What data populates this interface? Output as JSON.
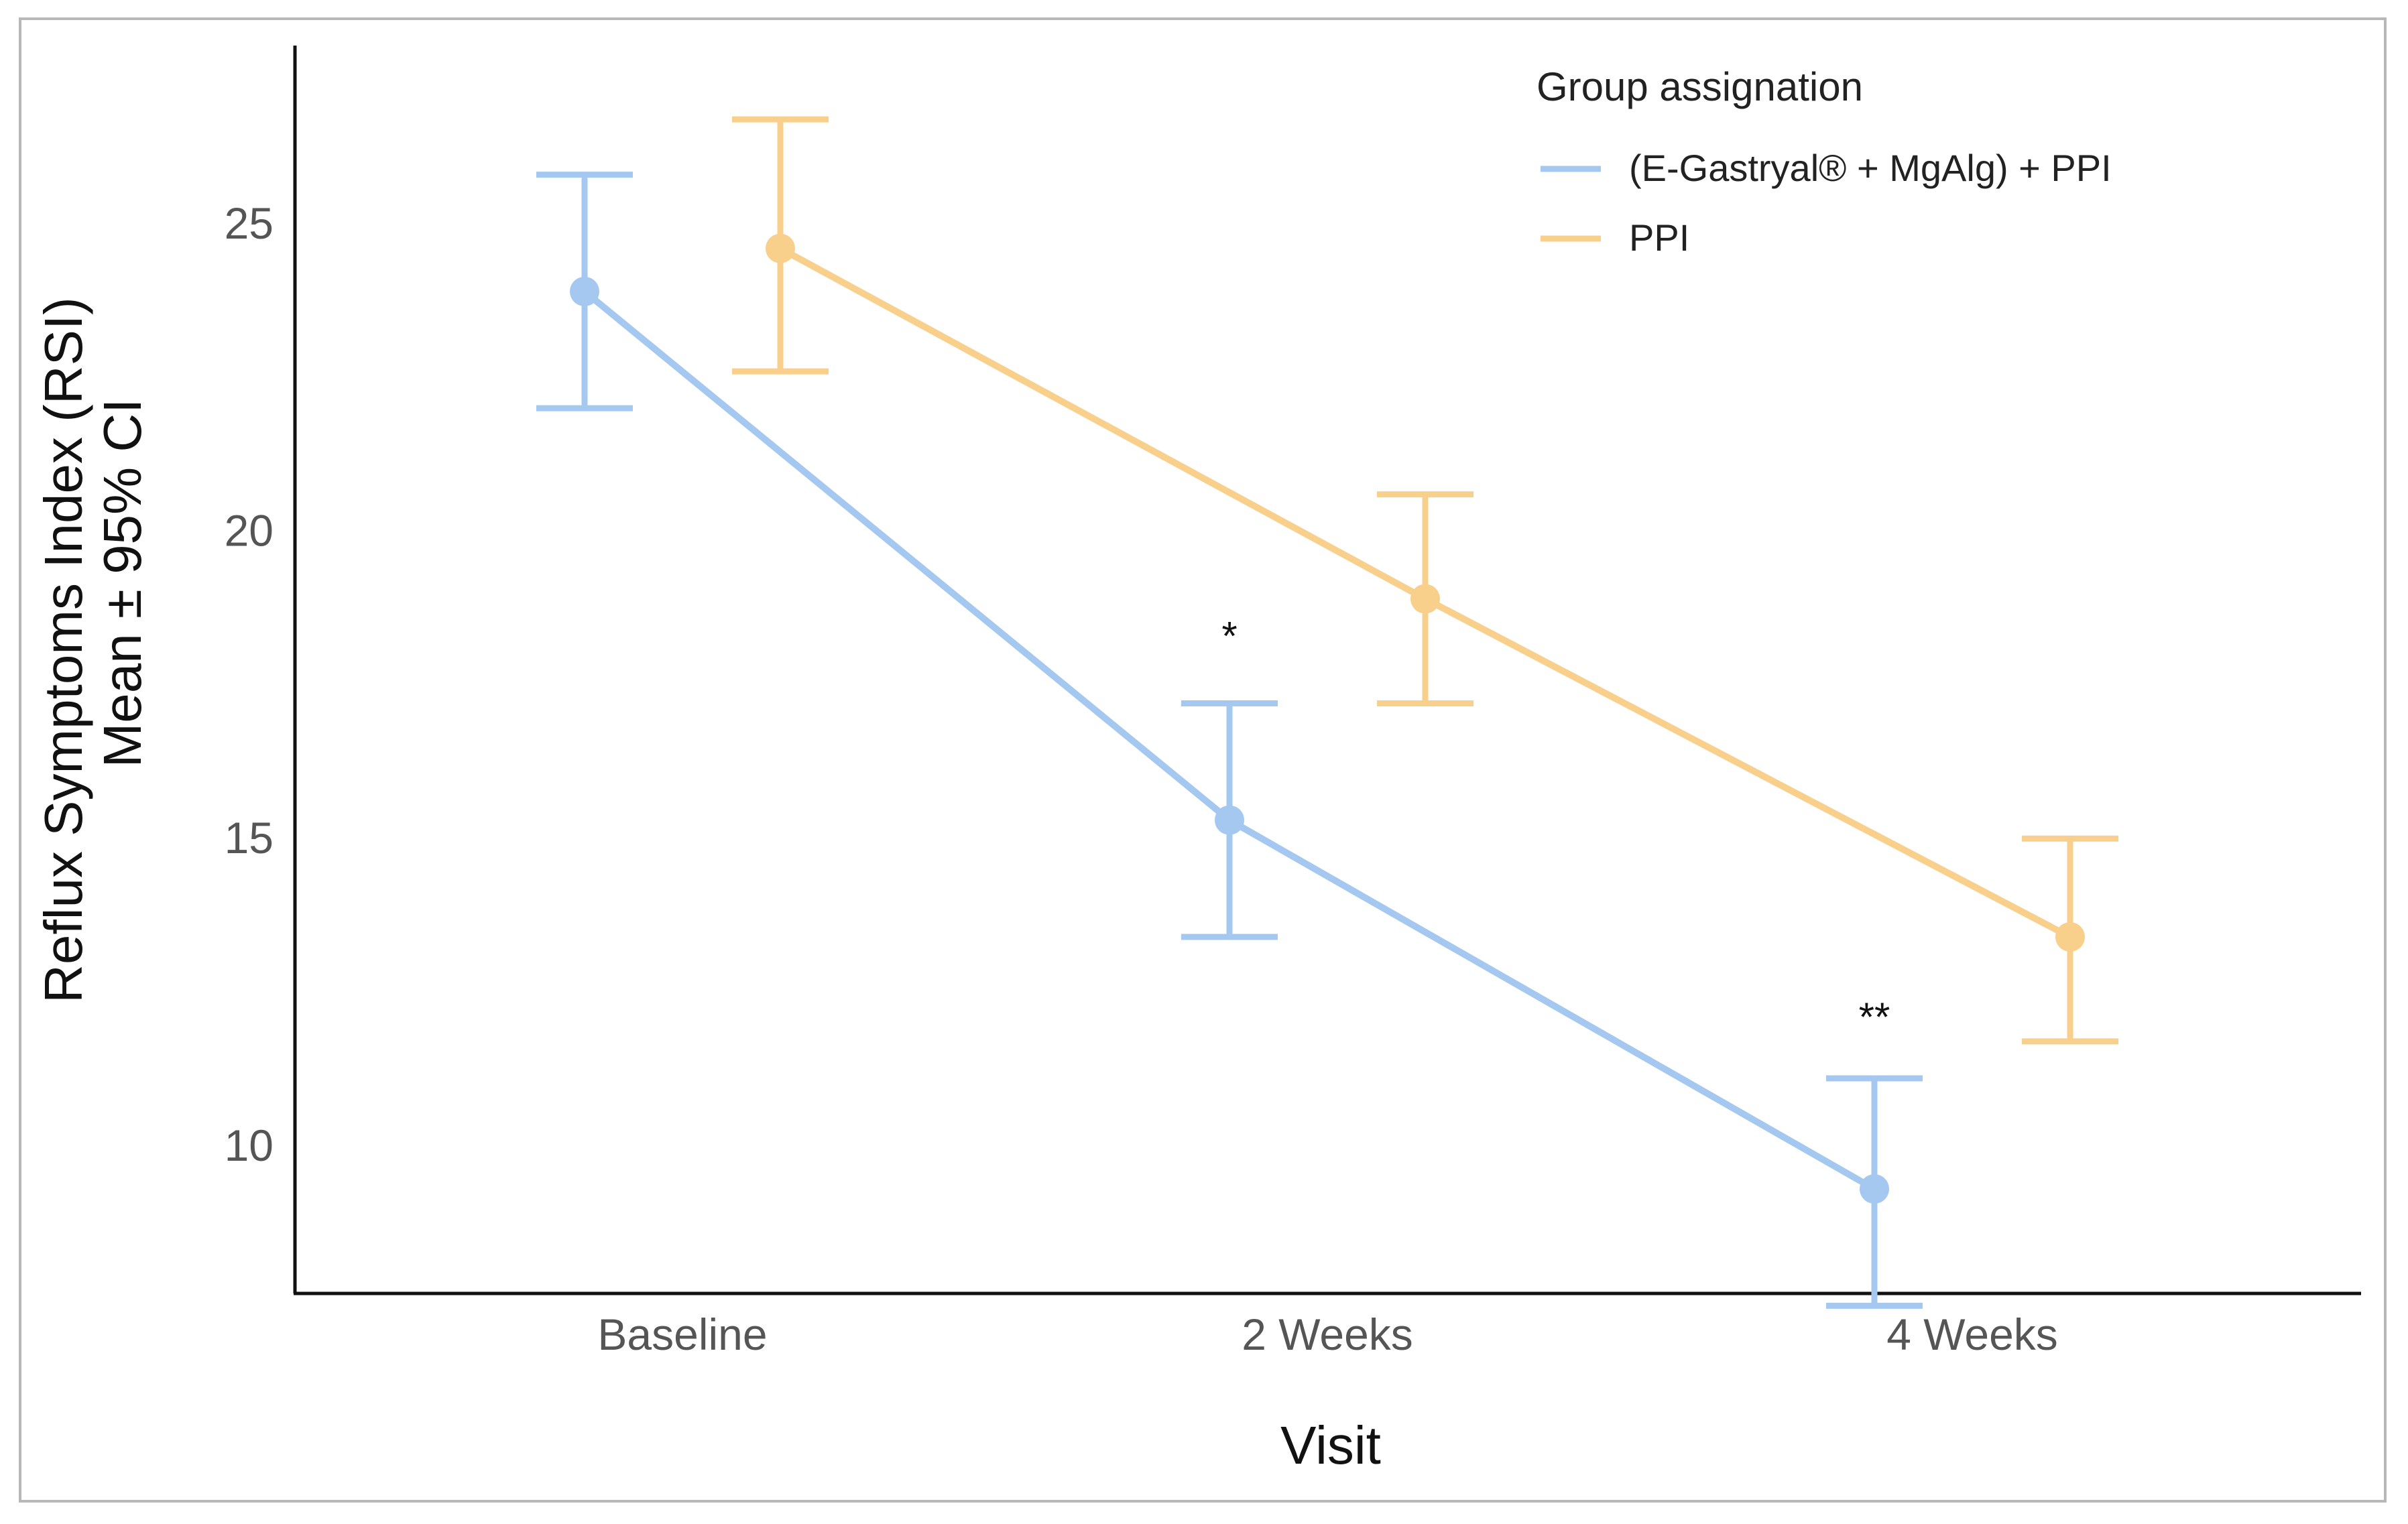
{
  "chart_data": {
    "type": "line",
    "categories": [
      "Baseline",
      "2 Weeks",
      "4 Weeks"
    ],
    "xlabel": "Visit",
    "ylabel_lines": [
      "Reflux Symptoms Index (RSI)",
      "Mean ± 95% CI"
    ],
    "ylim": [
      7.6,
      27.9
    ],
    "yticks": [
      10,
      15,
      20,
      25
    ],
    "legend_title": "Group assignation",
    "legend_position": "top-right",
    "series": [
      {
        "name": "(E-Gastryal® + MgAlg) + PPI",
        "color": "#a4c8f0",
        "values": [
          23.9,
          15.3,
          9.3
        ],
        "ci_low": [
          22.0,
          13.4,
          7.4
        ],
        "ci_high": [
          25.8,
          17.2,
          11.1
        ]
      },
      {
        "name": "PPI",
        "color": "#f8d08c",
        "values": [
          24.6,
          18.9,
          13.4
        ],
        "ci_low": [
          22.6,
          17.2,
          11.7
        ],
        "ci_high": [
          26.7,
          20.6,
          15.0
        ]
      }
    ],
    "annotations": [
      {
        "text": "*",
        "category": "2 Weeks",
        "series": 0,
        "y": 18.4
      },
      {
        "text": "**",
        "category": "4 Weeks",
        "series": 0,
        "y": 12.2
      }
    ]
  }
}
